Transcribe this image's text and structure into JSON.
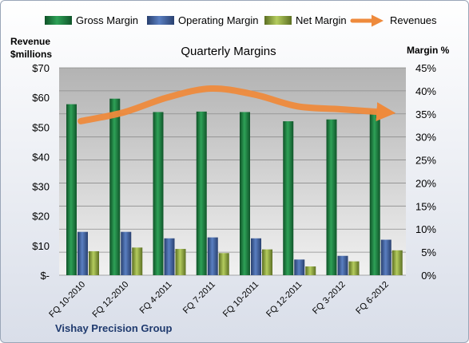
{
  "chart_data": {
    "type": "bar",
    "title": "Quarterly Margins",
    "footer": "Vishay Precision Group",
    "y_left_label_line1": "Revenue",
    "y_left_label_line2": "$millions",
    "y_right_label": "Margin %",
    "categories": [
      "FQ 10-2010",
      "FQ 12-2010",
      "FQ 4-2011",
      "FQ 7-2011",
      "FQ 10-2011",
      "FQ 12-2011",
      "FQ 3-2012",
      "FQ 6-2012"
    ],
    "series": [
      {
        "name": "Gross Margin",
        "axis": "right",
        "values": [
          37.1,
          38.3,
          35.4,
          35.5,
          35.4,
          33.4,
          33.8,
          35.8
        ],
        "color": "#1e7b3c"
      },
      {
        "name": "Operating Margin",
        "axis": "right",
        "values": [
          9.4,
          9.4,
          8.0,
          8.2,
          8.0,
          3.4,
          4.2,
          7.7
        ],
        "color": "#3e5d99"
      },
      {
        "name": "Net Margin",
        "axis": "right",
        "values": [
          5.2,
          6.0,
          5.7,
          4.8,
          5.6,
          1.9,
          3.0,
          5.4
        ],
        "color": "#8fa83d"
      },
      {
        "name": "Revenues",
        "axis": "left",
        "type": "line",
        "values": [
          52,
          55,
          60,
          63,
          61,
          57,
          56,
          55
        ],
        "color": "#ee8a3c"
      }
    ],
    "y_left_ticks": [
      "$-",
      "$10",
      "$20",
      "$30",
      "$40",
      "$50",
      "$60",
      "$70"
    ],
    "y_left_range": [
      0,
      70
    ],
    "y_right_ticks": [
      "0%",
      "5%",
      "10%",
      "15%",
      "20%",
      "25%",
      "30%",
      "35%",
      "40%",
      "45%"
    ],
    "y_right_range": [
      0,
      45
    ],
    "grid": true,
    "legend_position": "top"
  }
}
